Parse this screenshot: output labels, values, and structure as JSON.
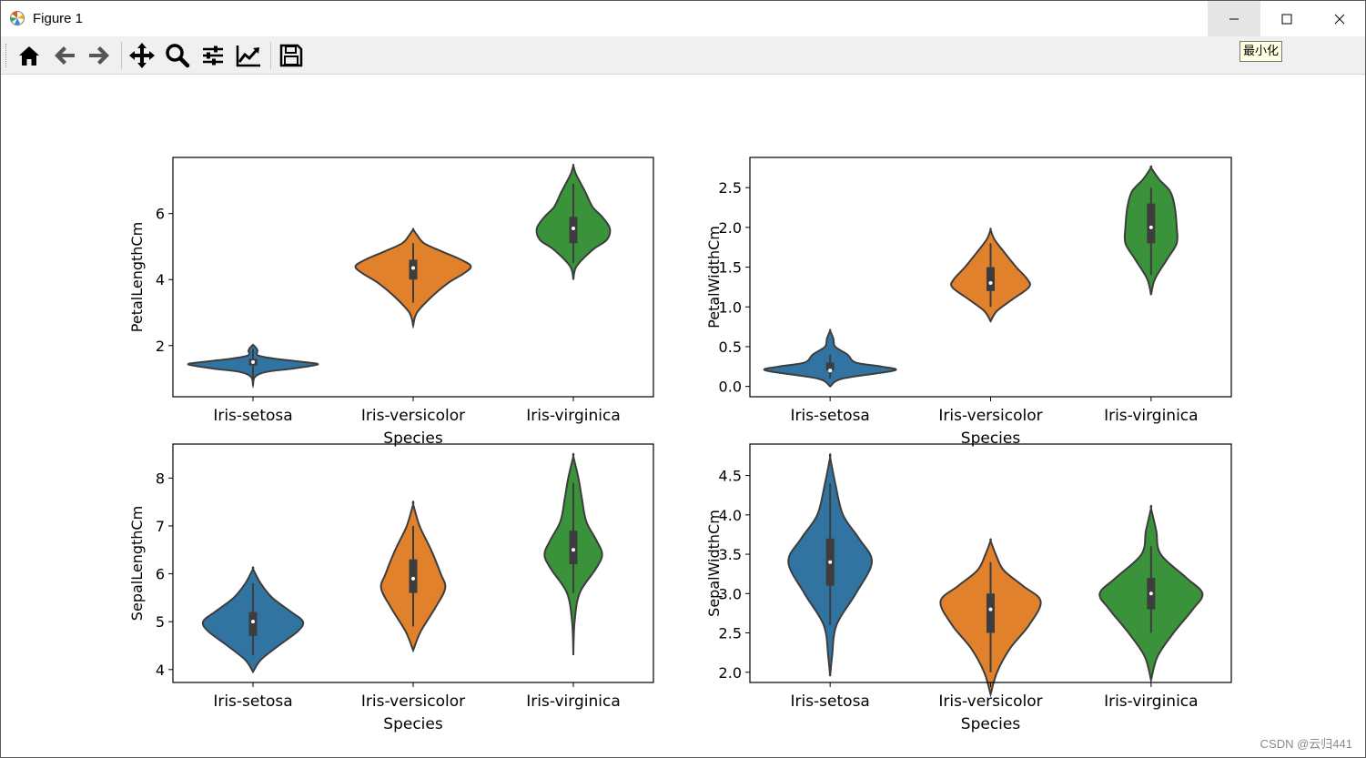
{
  "window": {
    "title": "Figure 1",
    "minimize_tooltip": "最小化",
    "watermark": "CSDN @云归441"
  },
  "toolbar": {
    "buttons": [
      "home-icon",
      "back-icon",
      "forward-icon",
      "pan-icon",
      "zoom-icon",
      "configure-subplots-icon",
      "edit-axis-icon",
      "save-icon"
    ]
  },
  "colors": {
    "setosa": "#3274a1",
    "versicolor": "#e1812c",
    "virginica": "#3a923a",
    "outline": "#3d3d3d"
  },
  "chart_data": [
    {
      "type": "violin",
      "title": "",
      "xlabel": "Species",
      "ylabel": "PetalLengthCm",
      "categories": [
        "Iris-setosa",
        "Iris-versicolor",
        "Iris-virginica"
      ],
      "ylim": [
        0.45,
        7.7
      ],
      "yticks": [
        2,
        4,
        6
      ],
      "ytick_labels": [
        "2",
        "4",
        "6"
      ],
      "series": [
        {
          "name": "Iris-setosa",
          "color": "#3274a1",
          "stats": {
            "whisker_low": 1.0,
            "q1": 1.4,
            "median": 1.5,
            "q3": 1.6,
            "whisker_high": 1.9
          },
          "profile": [
            [
              0.8,
              0
            ],
            [
              1.05,
              0.03
            ],
            [
              1.2,
              0.2
            ],
            [
              1.3,
              0.6
            ],
            [
              1.4,
              0.95
            ],
            [
              1.45,
              1.0
            ],
            [
              1.5,
              0.8
            ],
            [
              1.6,
              0.35
            ],
            [
              1.7,
              0.08
            ],
            [
              1.85,
              0.07
            ],
            [
              1.95,
              0.04
            ],
            [
              2.02,
              0
            ]
          ]
        },
        {
          "name": "Iris-versicolor",
          "color": "#e1812c",
          "stats": {
            "whisker_low": 3.3,
            "q1": 4.0,
            "median": 4.35,
            "q3": 4.6,
            "whisker_high": 5.1
          },
          "profile": [
            [
              2.6,
              0
            ],
            [
              3.0,
              0.06
            ],
            [
              3.5,
              0.3
            ],
            [
              3.9,
              0.55
            ],
            [
              4.2,
              0.8
            ],
            [
              4.4,
              0.9
            ],
            [
              4.6,
              0.75
            ],
            [
              4.85,
              0.45
            ],
            [
              5.1,
              0.17
            ],
            [
              5.35,
              0.06
            ],
            [
              5.52,
              0
            ]
          ]
        },
        {
          "name": "Iris-virginica",
          "color": "#3a923a",
          "stats": {
            "whisker_low": 4.5,
            "q1": 5.1,
            "median": 5.55,
            "q3": 5.9,
            "whisker_high": 6.9
          },
          "profile": [
            [
              4.0,
              0
            ],
            [
              4.4,
              0.05
            ],
            [
              4.9,
              0.3
            ],
            [
              5.2,
              0.52
            ],
            [
              5.55,
              0.57
            ],
            [
              5.9,
              0.45
            ],
            [
              6.2,
              0.3
            ],
            [
              6.6,
              0.2
            ],
            [
              6.9,
              0.12
            ],
            [
              7.2,
              0.04
            ],
            [
              7.45,
              0
            ]
          ]
        }
      ]
    },
    {
      "type": "violin",
      "title": "",
      "xlabel": "Species",
      "ylabel": "PetalWidthCm",
      "categories": [
        "Iris-setosa",
        "Iris-versicolor",
        "Iris-virginica"
      ],
      "ylim": [
        -0.13,
        2.88
      ],
      "yticks": [
        0.0,
        0.5,
        1.0,
        1.5,
        2.0,
        2.5
      ],
      "ytick_labels": [
        "0.0",
        "0.5",
        "1.0",
        "1.5",
        "2.0",
        "2.5"
      ],
      "series": [
        {
          "name": "Iris-setosa",
          "color": "#3274a1",
          "stats": {
            "whisker_low": 0.1,
            "q1": 0.2,
            "median": 0.2,
            "q3": 0.3,
            "whisker_high": 0.4
          },
          "profile": [
            [
              0.0,
              0
            ],
            [
              0.1,
              0.2
            ],
            [
              0.2,
              1.0
            ],
            [
              0.25,
              0.8
            ],
            [
              0.3,
              0.4
            ],
            [
              0.4,
              0.27
            ],
            [
              0.5,
              0.08
            ],
            [
              0.6,
              0.05
            ],
            [
              0.7,
              0
            ]
          ]
        },
        {
          "name": "Iris-versicolor",
          "color": "#e1812c",
          "stats": {
            "whisker_low": 1.0,
            "q1": 1.2,
            "median": 1.3,
            "q3": 1.5,
            "whisker_high": 1.8
          },
          "profile": [
            [
              0.82,
              0
            ],
            [
              0.95,
              0.1
            ],
            [
              1.1,
              0.35
            ],
            [
              1.25,
              0.6
            ],
            [
              1.35,
              0.57
            ],
            [
              1.5,
              0.4
            ],
            [
              1.7,
              0.2
            ],
            [
              1.85,
              0.06
            ],
            [
              1.97,
              0
            ]
          ]
        },
        {
          "name": "Iris-virginica",
          "color": "#3a923a",
          "stats": {
            "whisker_low": 1.4,
            "q1": 1.8,
            "median": 2.0,
            "q3": 2.3,
            "whisker_high": 2.5
          },
          "profile": [
            [
              1.15,
              0
            ],
            [
              1.35,
              0.06
            ],
            [
              1.6,
              0.25
            ],
            [
              1.8,
              0.4
            ],
            [
              2.0,
              0.4
            ],
            [
              2.25,
              0.37
            ],
            [
              2.45,
              0.3
            ],
            [
              2.6,
              0.13
            ],
            [
              2.75,
              0
            ]
          ]
        }
      ]
    },
    {
      "type": "violin",
      "title": "",
      "xlabel": "Species",
      "ylabel": "SepalLengthCm",
      "categories": [
        "Iris-setosa",
        "Iris-versicolor",
        "Iris-virginica"
      ],
      "ylim": [
        3.73,
        8.71
      ],
      "yticks": [
        4,
        5,
        6,
        7,
        8
      ],
      "ytick_labels": [
        "4",
        "5",
        "6",
        "7",
        "8"
      ],
      "series": [
        {
          "name": "Iris-setosa",
          "color": "#3274a1",
          "stats": {
            "whisker_low": 4.3,
            "q1": 4.7,
            "median": 5.0,
            "q3": 5.2,
            "whisker_high": 5.8
          },
          "profile": [
            [
              3.95,
              0
            ],
            [
              4.2,
              0.12
            ],
            [
              4.5,
              0.4
            ],
            [
              4.8,
              0.7
            ],
            [
              5.0,
              0.78
            ],
            [
              5.2,
              0.6
            ],
            [
              5.5,
              0.3
            ],
            [
              5.8,
              0.12
            ],
            [
              6.1,
              0
            ]
          ]
        },
        {
          "name": "Iris-versicolor",
          "color": "#e1812c",
          "stats": {
            "whisker_low": 4.9,
            "q1": 5.6,
            "median": 5.9,
            "q3": 6.3,
            "whisker_high": 7.0
          },
          "profile": [
            [
              4.4,
              0
            ],
            [
              4.8,
              0.12
            ],
            [
              5.3,
              0.35
            ],
            [
              5.7,
              0.5
            ],
            [
              6.0,
              0.43
            ],
            [
              6.5,
              0.28
            ],
            [
              7.0,
              0.1
            ],
            [
              7.45,
              0
            ]
          ]
        },
        {
          "name": "Iris-virginica",
          "color": "#3a923a",
          "stats": {
            "whisker_low": 5.6,
            "q1": 6.2,
            "median": 6.5,
            "q3": 6.9,
            "whisker_high": 7.9
          },
          "profile": [
            [
              4.3,
              0
            ],
            [
              5.0,
              0.02
            ],
            [
              5.6,
              0.1
            ],
            [
              6.1,
              0.35
            ],
            [
              6.4,
              0.45
            ],
            [
              6.7,
              0.36
            ],
            [
              7.1,
              0.2
            ],
            [
              7.6,
              0.13
            ],
            [
              8.0,
              0.08
            ],
            [
              8.45,
              0
            ]
          ]
        }
      ]
    },
    {
      "type": "violin",
      "title": "",
      "xlabel": "Species",
      "ylabel": "SepalWidthCm",
      "categories": [
        "Iris-setosa",
        "Iris-versicolor",
        "Iris-virginica"
      ],
      "ylim": [
        1.87,
        4.9
      ],
      "yticks": [
        2.0,
        2.5,
        3.0,
        3.5,
        4.0,
        4.5
      ],
      "ytick_labels": [
        "2.0",
        "2.5",
        "3.0",
        "3.5",
        "4.0",
        "4.5"
      ],
      "series": [
        {
          "name": "Iris-setosa",
          "color": "#3274a1",
          "stats": {
            "whisker_low": 2.6,
            "q1": 3.1,
            "median": 3.4,
            "q3": 3.7,
            "whisker_high": 4.4
          },
          "profile": [
            [
              1.95,
              0
            ],
            [
              2.2,
              0.03
            ],
            [
              2.6,
              0.1
            ],
            [
              3.0,
              0.4
            ],
            [
              3.4,
              0.65
            ],
            [
              3.7,
              0.45
            ],
            [
              4.0,
              0.2
            ],
            [
              4.4,
              0.08
            ],
            [
              4.73,
              0
            ]
          ]
        },
        {
          "name": "Iris-versicolor",
          "color": "#e1812c",
          "stats": {
            "whisker_low": 2.0,
            "q1": 2.5,
            "median": 2.8,
            "q3": 3.0,
            "whisker_high": 3.4
          },
          "profile": [
            [
              1.72,
              0
            ],
            [
              2.0,
              0.1
            ],
            [
              2.3,
              0.3
            ],
            [
              2.6,
              0.6
            ],
            [
              2.9,
              0.78
            ],
            [
              3.1,
              0.5
            ],
            [
              3.3,
              0.2
            ],
            [
              3.5,
              0.08
            ],
            [
              3.67,
              0
            ]
          ]
        },
        {
          "name": "Iris-virginica",
          "color": "#3a923a",
          "stats": {
            "whisker_low": 2.5,
            "q1": 2.8,
            "median": 3.0,
            "q3": 3.2,
            "whisker_high": 3.6
          },
          "profile": [
            [
              1.9,
              0
            ],
            [
              2.2,
              0.1
            ],
            [
              2.5,
              0.35
            ],
            [
              2.8,
              0.65
            ],
            [
              3.0,
              0.8
            ],
            [
              3.2,
              0.55
            ],
            [
              3.5,
              0.15
            ],
            [
              3.8,
              0.08
            ],
            [
              4.08,
              0
            ]
          ]
        }
      ]
    }
  ]
}
